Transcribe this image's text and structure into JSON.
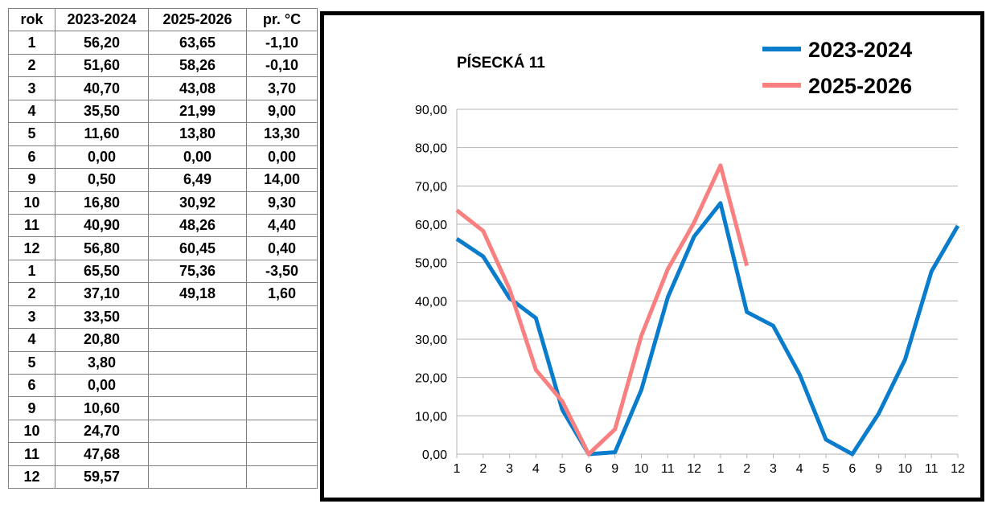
{
  "table": {
    "headers": [
      "rok",
      "2023-2024",
      "2025-2026",
      "pr. °C"
    ],
    "rows": [
      [
        "1",
        "56,20",
        "63,65",
        "-1,10"
      ],
      [
        "2",
        "51,60",
        "58,26",
        "-0,10"
      ],
      [
        "3",
        "40,70",
        "43,08",
        "3,70"
      ],
      [
        "4",
        "35,50",
        "21,99",
        "9,00"
      ],
      [
        "5",
        "11,60",
        "13,80",
        "13,30"
      ],
      [
        "6",
        "0,00",
        "0,00",
        "0,00"
      ],
      [
        "9",
        "0,50",
        "6,49",
        "14,00"
      ],
      [
        "10",
        "16,80",
        "30,92",
        "9,30"
      ],
      [
        "11",
        "40,90",
        "48,26",
        "4,40"
      ],
      [
        "12",
        "56,80",
        "60,45",
        "0,40"
      ],
      [
        "1",
        "65,50",
        "75,36",
        "-3,50"
      ],
      [
        "2",
        "37,10",
        "49,18",
        "1,60"
      ],
      [
        "3",
        "33,50",
        "",
        ""
      ],
      [
        "4",
        "20,80",
        "",
        ""
      ],
      [
        "5",
        "3,80",
        "",
        ""
      ],
      [
        "6",
        "0,00",
        "",
        ""
      ],
      [
        "9",
        "10,60",
        "",
        ""
      ],
      [
        "10",
        "24,70",
        "",
        ""
      ],
      [
        "11",
        "47,68",
        "",
        ""
      ],
      [
        "12",
        "59,57",
        "",
        ""
      ]
    ]
  },
  "chart_data": {
    "type": "line",
    "title": "PÍSECKÁ 11",
    "xlabel": "",
    "ylabel": "",
    "categories": [
      "1",
      "2",
      "3",
      "4",
      "5",
      "6",
      "9",
      "10",
      "11",
      "12",
      "1",
      "2",
      "3",
      "4",
      "5",
      "6",
      "9",
      "10",
      "11",
      "12"
    ],
    "series": [
      {
        "name": "2023-2024",
        "color": "#0a7ccc",
        "values": [
          56.2,
          51.6,
          40.7,
          35.5,
          11.6,
          0.0,
          0.5,
          16.8,
          40.9,
          56.8,
          65.5,
          37.1,
          33.5,
          20.8,
          3.8,
          0.0,
          10.6,
          24.7,
          47.68,
          59.57
        ]
      },
      {
        "name": "2025-2026",
        "color": "#f88080",
        "values": [
          63.65,
          58.26,
          43.08,
          21.99,
          13.8,
          0.0,
          6.49,
          30.92,
          48.26,
          60.45,
          75.36,
          49.18,
          null,
          null,
          null,
          null,
          null,
          null,
          null,
          null
        ]
      }
    ],
    "ylim": [
      0,
      90
    ],
    "yticks": [
      "0,00",
      "10,00",
      "20,00",
      "30,00",
      "40,00",
      "50,00",
      "60,00",
      "70,00",
      "80,00",
      "90,00"
    ],
    "grid": true,
    "legend_position": "top-right"
  }
}
